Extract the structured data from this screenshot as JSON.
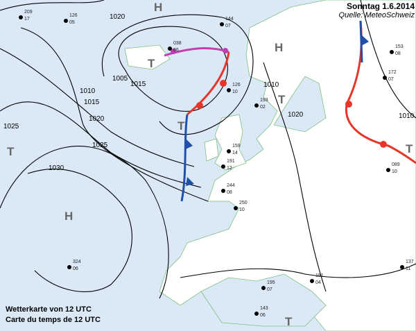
{
  "header": {
    "title": "Sonntag 1.6.2014",
    "source": "Quelle: MeteoSchweiz"
  },
  "caption": {
    "line1": "Wetterkarte von 12 UTC",
    "line2": "Carte du temps de 12 UTC"
  },
  "colors": {
    "sea": "#dbe9f7",
    "land": "#ffffff",
    "coast": "#7fbf7f",
    "isobar": "#000000",
    "warm_front": "#e8352a",
    "cold_front": "#1f4fa8",
    "occlusion": "#c040b0"
  },
  "pressure_centers": [
    {
      "label": "H"
    },
    {
      "label": "H"
    },
    {
      "label": "T"
    },
    {
      "label": "T"
    },
    {
      "label": "T"
    },
    {
      "label": "H"
    },
    {
      "label": "T"
    },
    {
      "label": "T"
    },
    {
      "label": "T"
    }
  ],
  "isobars": [
    "1020",
    "1015",
    "1005",
    "1010",
    "1015",
    "1020",
    "1025",
    "1030",
    "1025",
    "1010",
    "1020",
    "1010"
  ],
  "stations": [
    {
      "a": "209",
      "b": "17"
    },
    {
      "a": "126",
      "b": "05"
    },
    {
      "a": "144",
      "b": "07"
    },
    {
      "a": "038",
      "b": "86"
    },
    {
      "a": "126",
      "b": "10"
    },
    {
      "a": "193",
      "b": "02"
    },
    {
      "a": "159",
      "b": "14"
    },
    {
      "a": "191",
      "b": "12"
    },
    {
      "a": "244",
      "b": "08"
    },
    {
      "a": "250",
      "b": "10"
    },
    {
      "a": "324",
      "b": "06"
    },
    {
      "a": "172",
      "b": "07"
    },
    {
      "a": "089",
      "b": "10"
    },
    {
      "a": "137",
      "b": "11"
    },
    {
      "a": "151",
      "b": "04"
    },
    {
      "a": "195",
      "b": "07"
    },
    {
      "a": "143",
      "b": "06"
    },
    {
      "a": "153",
      "b": "08"
    }
  ]
}
